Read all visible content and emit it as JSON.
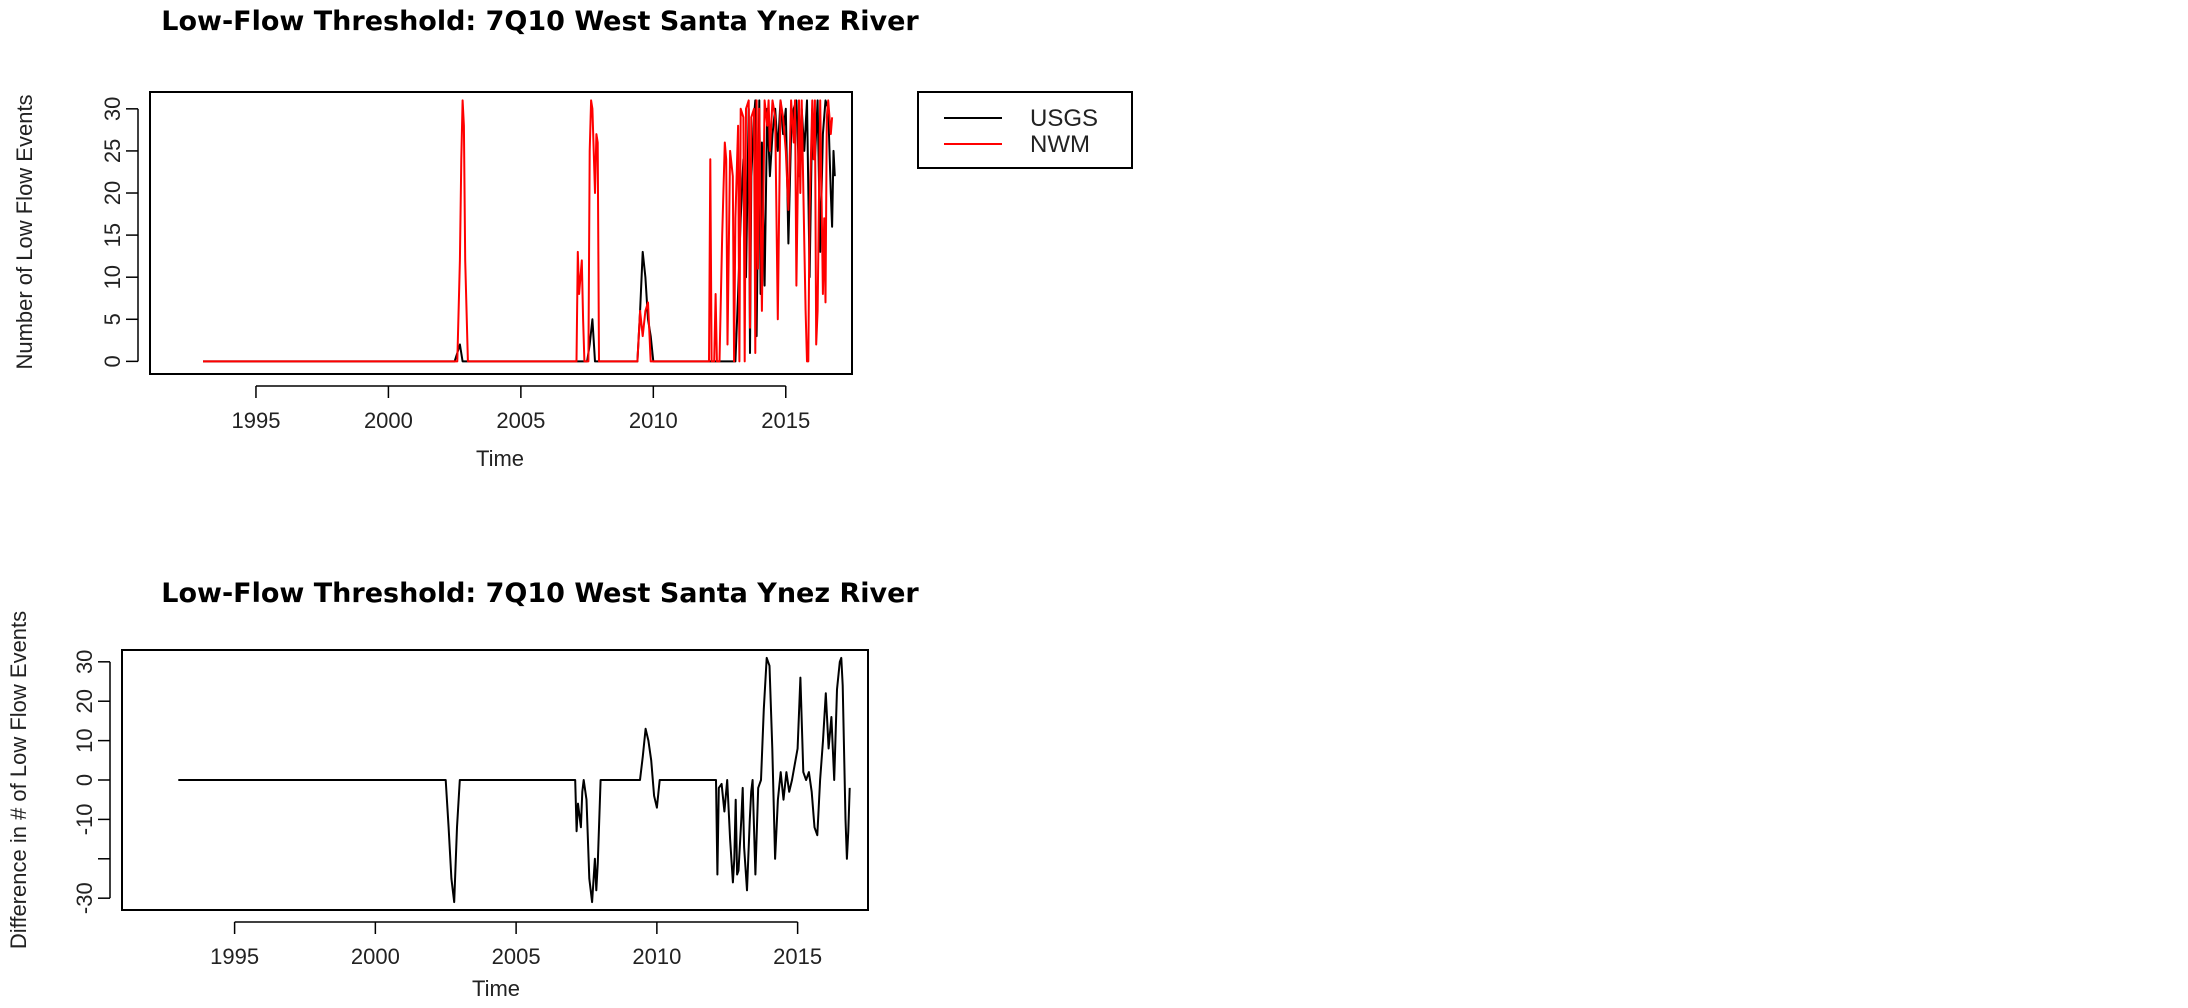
{
  "chart_data": [
    {
      "type": "line",
      "title": "Low-Flow Threshold: 7Q10 West Santa Ynez River",
      "xlabel": "Time",
      "ylabel": "Number of Low Flow Events",
      "xlim": [
        1991,
        2017.5
      ],
      "ylim": [
        -1.5,
        32
      ],
      "xticks": [
        "1995",
        "2000",
        "2005",
        "2010",
        "2015"
      ],
      "yticks": [
        "0",
        "5",
        "10",
        "15",
        "20",
        "25",
        "30"
      ],
      "legend": {
        "placement": "outside-right",
        "entries": [
          "USGS",
          "NWM"
        ]
      },
      "colors": {
        "USGS": "#000000",
        "NWM": "#ff0000"
      },
      "series": [
        {
          "name": "USGS",
          "points": [
            [
              1993.0,
              0
            ],
            [
              2002.5,
              0
            ],
            [
              2002.6,
              1
            ],
            [
              2002.7,
              2
            ],
            [
              2002.8,
              0
            ],
            [
              2007.5,
              0
            ],
            [
              2007.6,
              2
            ],
            [
              2007.7,
              5
            ],
            [
              2007.8,
              0
            ],
            [
              2009.4,
              0
            ],
            [
              2009.5,
              6
            ],
            [
              2009.6,
              13
            ],
            [
              2009.7,
              10
            ],
            [
              2009.8,
              5
            ],
            [
              2009.9,
              3
            ],
            [
              2010.0,
              0
            ],
            [
              2012.9,
              0
            ],
            [
              2013.1,
              0
            ],
            [
              2013.2,
              8
            ],
            [
              2013.3,
              17
            ],
            [
              2013.4,
              24
            ],
            [
              2013.5,
              10
            ],
            [
              2013.6,
              30
            ],
            [
              2013.65,
              1
            ],
            [
              2013.7,
              22
            ],
            [
              2013.8,
              29
            ],
            [
              2013.85,
              31
            ],
            [
              2013.9,
              3
            ],
            [
              2014.0,
              31
            ],
            [
              2014.05,
              8
            ],
            [
              2014.1,
              26
            ],
            [
              2014.2,
              9
            ],
            [
              2014.3,
              30
            ],
            [
              2014.4,
              22
            ],
            [
              2014.5,
              27
            ],
            [
              2014.6,
              30
            ],
            [
              2014.7,
              25
            ],
            [
              2014.8,
              31
            ],
            [
              2014.9,
              27
            ],
            [
              2015.0,
              30
            ],
            [
              2015.1,
              14
            ],
            [
              2015.2,
              27
            ],
            [
              2015.3,
              30
            ],
            [
              2015.4,
              31
            ],
            [
              2015.5,
              22
            ],
            [
              2015.6,
              30
            ],
            [
              2015.7,
              25
            ],
            [
              2015.8,
              31
            ],
            [
              2015.9,
              10
            ],
            [
              2016.0,
              30
            ],
            [
              2016.1,
              24
            ],
            [
              2016.2,
              31
            ],
            [
              2016.3,
              13
            ],
            [
              2016.4,
              27
            ],
            [
              2016.5,
              31
            ],
            [
              2016.6,
              30
            ],
            [
              2016.7,
              20
            ],
            [
              2016.75,
              16
            ],
            [
              2016.8,
              25
            ],
            [
              2016.85,
              22
            ]
          ]
        },
        {
          "name": "NWM",
          "points": [
            [
              1993.0,
              0
            ],
            [
              2002.6,
              0
            ],
            [
              2002.7,
              12
            ],
            [
              2002.75,
              24
            ],
            [
              2002.8,
              31
            ],
            [
              2002.85,
              28
            ],
            [
              2002.9,
              12
            ],
            [
              2003.0,
              0
            ],
            [
              2007.1,
              0
            ],
            [
              2007.15,
              13
            ],
            [
              2007.2,
              8
            ],
            [
              2007.3,
              12
            ],
            [
              2007.35,
              5
            ],
            [
              2007.4,
              0
            ],
            [
              2007.55,
              0
            ],
            [
              2007.6,
              25
            ],
            [
              2007.65,
              31
            ],
            [
              2007.7,
              30
            ],
            [
              2007.8,
              20
            ],
            [
              2007.85,
              27
            ],
            [
              2007.9,
              26
            ],
            [
              2007.95,
              0
            ],
            [
              2009.4,
              0
            ],
            [
              2009.5,
              6
            ],
            [
              2009.6,
              3
            ],
            [
              2009.7,
              6
            ],
            [
              2009.8,
              7
            ],
            [
              2009.9,
              0
            ],
            [
              2010.0,
              0
            ],
            [
              2012.1,
              0
            ],
            [
              2012.15,
              24
            ],
            [
              2012.2,
              0
            ],
            [
              2012.3,
              0
            ],
            [
              2012.35,
              8
            ],
            [
              2012.4,
              0
            ],
            [
              2012.5,
              0
            ],
            [
              2012.6,
              15
            ],
            [
              2012.7,
              26
            ],
            [
              2012.75,
              24
            ],
            [
              2012.8,
              2
            ],
            [
              2012.9,
              25
            ],
            [
              2013.0,
              22
            ],
            [
              2013.05,
              0
            ],
            [
              2013.1,
              17
            ],
            [
              2013.2,
              28
            ],
            [
              2013.25,
              0
            ],
            [
              2013.3,
              30
            ],
            [
              2013.4,
              29
            ],
            [
              2013.45,
              0
            ],
            [
              2013.5,
              30
            ],
            [
              2013.6,
              31
            ],
            [
              2013.65,
              4
            ],
            [
              2013.7,
              29
            ],
            [
              2013.8,
              30
            ],
            [
              2013.85,
              1
            ],
            [
              2013.9,
              31
            ],
            [
              2013.95,
              11
            ],
            [
              2014.0,
              30
            ],
            [
              2014.1,
              6
            ],
            [
              2014.2,
              31
            ],
            [
              2014.3,
              28
            ],
            [
              2014.35,
              31
            ],
            [
              2014.4,
              25
            ],
            [
              2014.5,
              31
            ],
            [
              2014.6,
              29
            ],
            [
              2014.7,
              5
            ],
            [
              2014.8,
              31
            ],
            [
              2014.9,
              29
            ],
            [
              2015.0,
              25
            ],
            [
              2015.1,
              18
            ],
            [
              2015.2,
              31
            ],
            [
              2015.3,
              26
            ],
            [
              2015.35,
              31
            ],
            [
              2015.4,
              9
            ],
            [
              2015.5,
              31
            ],
            [
              2015.55,
              20
            ],
            [
              2015.6,
              31
            ],
            [
              2015.7,
              14
            ],
            [
              2015.75,
              6
            ],
            [
              2015.8,
              0
            ],
            [
              2015.85,
              0
            ],
            [
              2015.9,
              18
            ],
            [
              2016.0,
              31
            ],
            [
              2016.05,
              24
            ],
            [
              2016.1,
              31
            ],
            [
              2016.15,
              2
            ],
            [
              2016.2,
              6
            ],
            [
              2016.3,
              31
            ],
            [
              2016.4,
              8
            ],
            [
              2016.45,
              17
            ],
            [
              2016.5,
              7
            ],
            [
              2016.55,
              29
            ],
            [
              2016.6,
              31
            ],
            [
              2016.7,
              27
            ],
            [
              2016.75,
              29
            ]
          ]
        }
      ]
    },
    {
      "type": "line",
      "title": "Low-Flow Threshold: 7Q10 West Santa Ynez River",
      "xlabel": "Time",
      "ylabel": "Difference in # of Low Flow Events",
      "xlim": [
        1991,
        2017.5
      ],
      "ylim": [
        -33,
        33
      ],
      "xticks": [
        "1995",
        "2000",
        "2005",
        "2010",
        "2015"
      ],
      "yticks": [
        "-30",
        "",
        "-10",
        "0",
        "10",
        "20",
        "30"
      ],
      "colors": {
        "line": "#000000"
      },
      "series": [
        {
          "name": "",
          "points": [
            [
              1993.0,
              0
            ],
            [
              2002.5,
              0
            ],
            [
              2002.6,
              -12
            ],
            [
              2002.7,
              -25
            ],
            [
              2002.8,
              -31
            ],
            [
              2002.9,
              -12
            ],
            [
              2003.0,
              0
            ],
            [
              2007.1,
              0
            ],
            [
              2007.15,
              -13
            ],
            [
              2007.2,
              -6
            ],
            [
              2007.3,
              -12
            ],
            [
              2007.35,
              -3
            ],
            [
              2007.4,
              0
            ],
            [
              2007.5,
              -5
            ],
            [
              2007.6,
              -25
            ],
            [
              2007.7,
              -31
            ],
            [
              2007.8,
              -20
            ],
            [
              2007.85,
              -28
            ],
            [
              2007.9,
              -21
            ],
            [
              2008.0,
              0
            ],
            [
              2009.4,
              0
            ],
            [
              2009.5,
              6
            ],
            [
              2009.6,
              13
            ],
            [
              2009.7,
              10
            ],
            [
              2009.8,
              5
            ],
            [
              2009.9,
              -4
            ],
            [
              2010.0,
              -7
            ],
            [
              2010.1,
              0
            ],
            [
              2012.1,
              0
            ],
            [
              2012.15,
              -24
            ],
            [
              2012.2,
              -2
            ],
            [
              2012.3,
              -1
            ],
            [
              2012.4,
              -8
            ],
            [
              2012.5,
              0
            ],
            [
              2012.6,
              -15
            ],
            [
              2012.7,
              -26
            ],
            [
              2012.75,
              -20
            ],
            [
              2012.8,
              -5
            ],
            [
              2012.85,
              -24
            ],
            [
              2012.9,
              -23
            ],
            [
              2013.0,
              -10
            ],
            [
              2013.05,
              -2
            ],
            [
              2013.1,
              -17
            ],
            [
              2013.2,
              -28
            ],
            [
              2013.3,
              -10
            ],
            [
              2013.35,
              -3
            ],
            [
              2013.4,
              0
            ],
            [
              2013.5,
              -24
            ],
            [
              2013.6,
              -2
            ],
            [
              2013.7,
              0
            ],
            [
              2013.8,
              18
            ],
            [
              2013.9,
              31
            ],
            [
              2014.0,
              29
            ],
            [
              2014.1,
              8
            ],
            [
              2014.2,
              -20
            ],
            [
              2014.3,
              -5
            ],
            [
              2014.4,
              2
            ],
            [
              2014.5,
              -5
            ],
            [
              2014.6,
              2
            ],
            [
              2014.7,
              -3
            ],
            [
              2014.8,
              0
            ],
            [
              2014.9,
              4
            ],
            [
              2015.0,
              8
            ],
            [
              2015.1,
              26
            ],
            [
              2015.2,
              2
            ],
            [
              2015.3,
              0
            ],
            [
              2015.4,
              2
            ],
            [
              2015.5,
              -3
            ],
            [
              2015.6,
              -12
            ],
            [
              2015.7,
              -14
            ],
            [
              2015.8,
              0
            ],
            [
              2015.9,
              10
            ],
            [
              2016.0,
              22
            ],
            [
              2016.1,
              8
            ],
            [
              2016.2,
              16
            ],
            [
              2016.3,
              0
            ],
            [
              2016.4,
              23
            ],
            [
              2016.5,
              30
            ],
            [
              2016.55,
              31
            ],
            [
              2016.6,
              24
            ],
            [
              2016.7,
              -10
            ],
            [
              2016.75,
              -20
            ],
            [
              2016.8,
              -13
            ],
            [
              2016.85,
              -2
            ]
          ]
        }
      ]
    }
  ]
}
